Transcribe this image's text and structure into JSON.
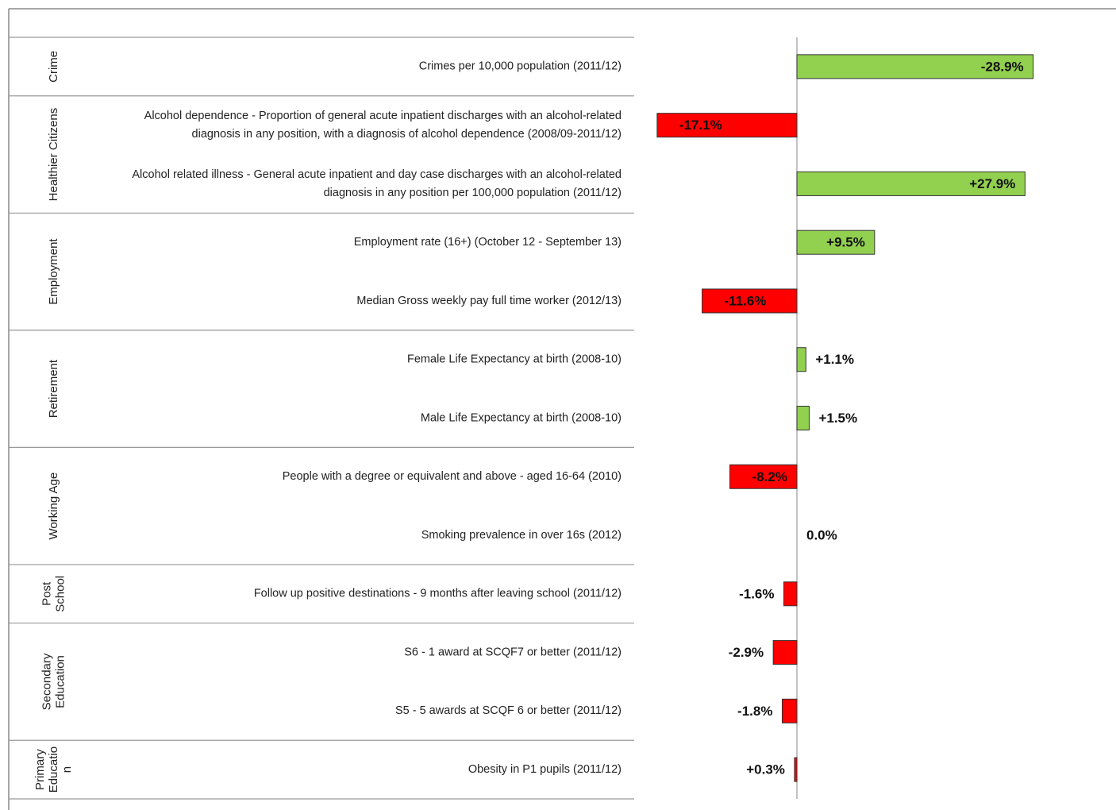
{
  "chart_data": {
    "type": "bar",
    "xlim": [
      -20,
      30
    ],
    "groups": [
      {
        "label": [
          "Crime"
        ],
        "categories": [
          [
            "Crimes per 10,000 population (2011/12)"
          ]
        ],
        "values": [
          -28.9
        ],
        "value_labels": [
          "-28.9%"
        ],
        "colors": [
          "#92d050"
        ]
      },
      {
        "label": [
          "Healthier Citizens"
        ],
        "categories": [
          [
            "Alcohol dependence - Proportion of general acute inpatient discharges with an alcohol-related",
            "diagnosis in any position, with a diagnosis of alcohol dependence (2008/09-2011/12)"
          ],
          [
            "Alcohol related illness - General acute inpatient and day case discharges with an alcohol-related",
            "diagnosis in any position per 100,000 population (2011/12)"
          ]
        ],
        "values": [
          -17.1,
          27.9
        ],
        "value_labels": [
          "-17.1%",
          "+27.9%"
        ],
        "colors": [
          "#ff0000",
          "#92d050"
        ]
      },
      {
        "label": [
          "Employment"
        ],
        "categories": [
          [
            "Employment rate (16+) (October 12 - September 13)"
          ],
          [
            "Median Gross weekly pay full time worker (2012/13)"
          ]
        ],
        "values": [
          9.5,
          -11.6
        ],
        "value_labels": [
          "+9.5%",
          "-11.6%"
        ],
        "colors": [
          "#92d050",
          "#ff0000"
        ]
      },
      {
        "label": [
          "Retirement"
        ],
        "categories": [
          [
            "Female Life Expectancy at birth (2008-10)"
          ],
          [
            "Male Life Expectancy at birth (2008-10)"
          ]
        ],
        "values": [
          1.1,
          1.5
        ],
        "value_labels": [
          "+1.1%",
          "+1.5%"
        ],
        "colors": [
          "#92d050",
          "#92d050"
        ]
      },
      {
        "label": [
          "Working Age"
        ],
        "categories": [
          [
            "People with a degree or equivalent and above - aged 16-64 (2010)"
          ],
          [
            "Smoking prevalence in over 16s (2012)"
          ]
        ],
        "values": [
          -8.2,
          0
        ],
        "value_labels": [
          "-8.2%",
          "0.0%"
        ],
        "colors": [
          "#ff0000",
          "#92d050"
        ]
      },
      {
        "label": [
          "Post",
          "School"
        ],
        "categories": [
          [
            "Follow up positive destinations - 9 months after leaving school (2011/12)"
          ]
        ],
        "values": [
          -1.6
        ],
        "value_labels": [
          "-1.6%"
        ],
        "colors": [
          "#ff0000"
        ]
      },
      {
        "label": [
          "Secondary",
          "Education"
        ],
        "categories": [
          [
            "S6 - 1 award at SCQF7 or better (2011/12)"
          ],
          [
            "S5 - 5 awards at SCQF 6 or better (2011/12)"
          ]
        ],
        "values": [
          -2.9,
          -1.8
        ],
        "value_labels": [
          "-2.9%",
          "-1.8%"
        ],
        "colors": [
          "#ff0000",
          "#ff0000"
        ]
      },
      {
        "label": [
          "Primary",
          "Educatio",
          "n"
        ],
        "categories": [
          [
            "Obesity in P1 pupils (2011/12)"
          ]
        ],
        "values": [
          0.3
        ],
        "value_labels": [
          "+0.3%"
        ],
        "colors": [
          "#ff0000"
        ]
      }
    ]
  }
}
